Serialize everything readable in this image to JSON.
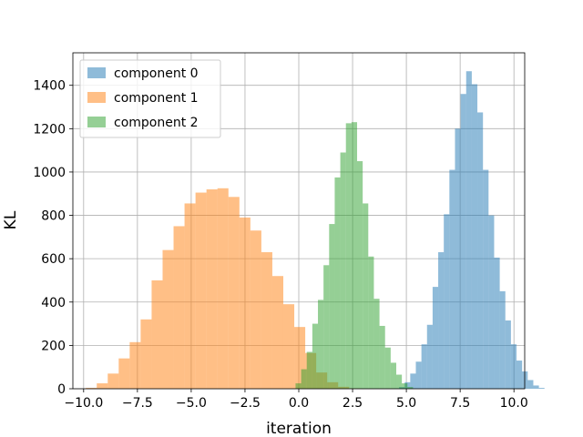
{
  "chart_data": {
    "type": "bar",
    "title": "",
    "xlabel": "iteration",
    "ylabel": "KL",
    "xlim": [
      -10.5,
      10.5
    ],
    "ylim": [
      0,
      1550
    ],
    "grid": true,
    "legend_position": "top-left",
    "x_ticks": [
      -10.0,
      -7.5,
      -5.0,
      -2.5,
      0.0,
      2.5,
      5.0,
      7.5,
      10.0
    ],
    "x_tick_labels": [
      "−10.0",
      "−7.5",
      "−5.0",
      "−2.5",
      "0.0",
      "2.5",
      "5.0",
      "7.5",
      "10.0"
    ],
    "y_ticks": [
      0,
      200,
      400,
      600,
      800,
      1000,
      1200,
      1400
    ],
    "y_tick_labels": [
      "0",
      "200",
      "400",
      "600",
      "800",
      "1000",
      "1200",
      "1400"
    ],
    "series": [
      {
        "name": "component 0",
        "color": "#1f77b4",
        "alpha": 0.5,
        "bin_start": 4.4,
        "bin_width": 0.26,
        "counts": [
          2,
          8,
          30,
          70,
          125,
          205,
          295,
          470,
          630,
          805,
          1010,
          1200,
          1360,
          1465,
          1405,
          1275,
          1010,
          800,
          605,
          450,
          315,
          205,
          130,
          80,
          40,
          15,
          4
        ]
      },
      {
        "name": "component 1",
        "color": "#ff7f0e",
        "alpha": 0.5,
        "bin_start": -9.9,
        "bin_width": 0.51,
        "counts": [
          4,
          25,
          70,
          140,
          215,
          320,
          500,
          640,
          750,
          855,
          905,
          920,
          925,
          885,
          790,
          730,
          630,
          520,
          390,
          285,
          165,
          75,
          30,
          9,
          2
        ]
      },
      {
        "name": "component 2",
        "color": "#2ca02c",
        "alpha": 0.5,
        "bin_start": -0.15,
        "bin_width": 0.26,
        "counts": [
          25,
          90,
          170,
          300,
          410,
          570,
          760,
          975,
          1090,
          1225,
          1230,
          1050,
          855,
          610,
          415,
          290,
          190,
          120,
          65,
          25,
          8
        ]
      }
    ]
  }
}
